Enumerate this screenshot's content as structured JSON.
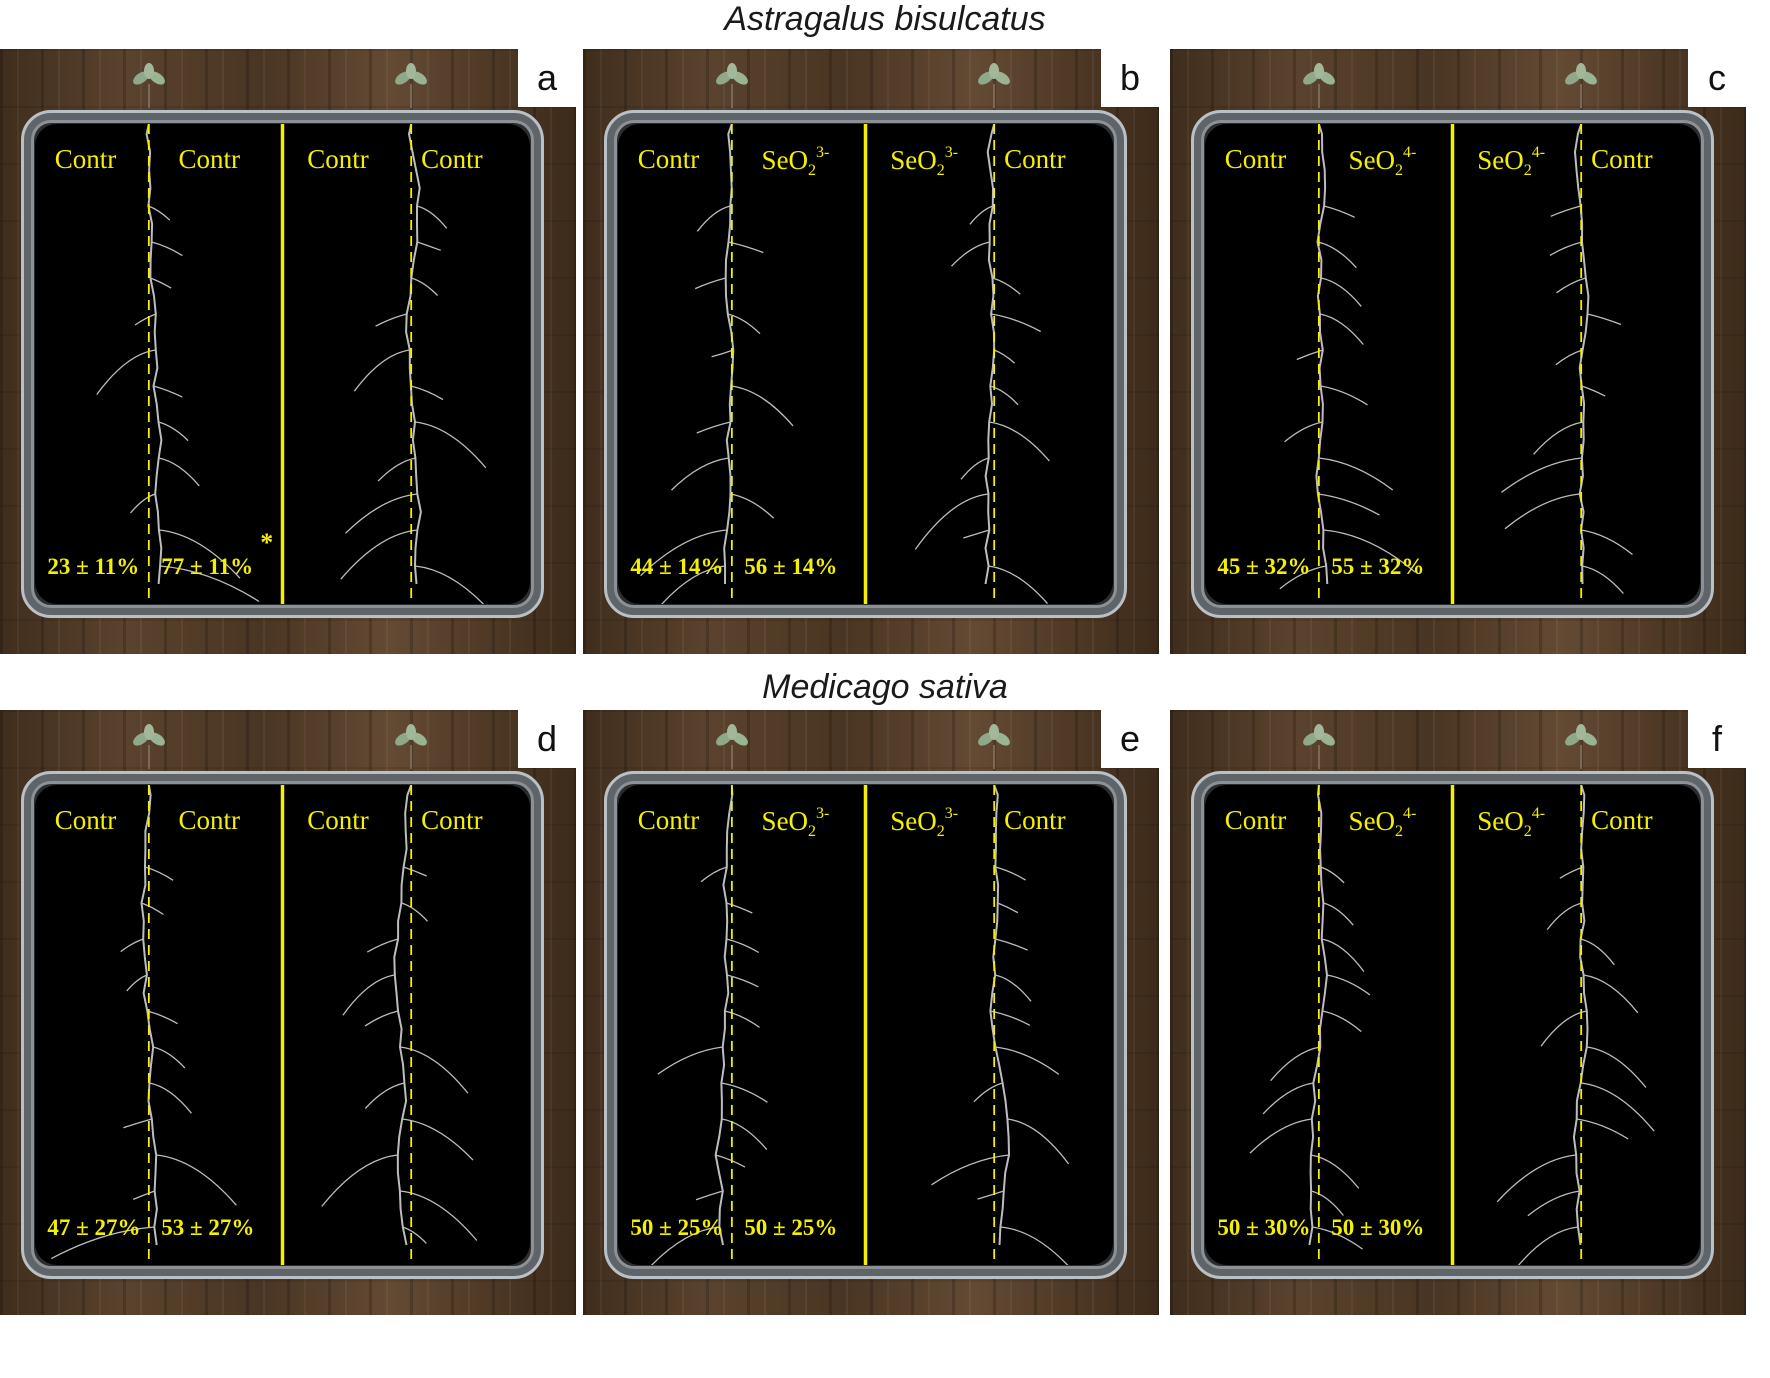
{
  "titles": {
    "top": "Astragalus bisulcatus",
    "bottom": "Medicago sativa"
  },
  "colors": {
    "label": "#f5f000",
    "root": "#bdbdbd"
  },
  "panels": [
    {
      "letter": "a",
      "labels": [
        {
          "main": "Contr",
          "sub": "",
          "sup": ""
        },
        {
          "main": "Contr",
          "sub": "",
          "sup": ""
        },
        {
          "main": "Contr",
          "sub": "",
          "sup": ""
        },
        {
          "main": "Contr",
          "sub": "",
          "sup": ""
        }
      ],
      "percent_left": "23 ± 11%",
      "percent_right": "77 ± 11%",
      "star": "*"
    },
    {
      "letter": "b",
      "labels": [
        {
          "main": "Contr",
          "sub": "",
          "sup": ""
        },
        {
          "main": "SeO",
          "sub": "2",
          "sup": "3-"
        },
        {
          "main": "SeO",
          "sub": "2",
          "sup": "3-"
        },
        {
          "main": "Contr",
          "sub": "",
          "sup": ""
        }
      ],
      "percent_left": "44 ± 14%",
      "percent_right": "56 ± 14%",
      "star": ""
    },
    {
      "letter": "c",
      "labels": [
        {
          "main": "Contr",
          "sub": "",
          "sup": ""
        },
        {
          "main": "SeO",
          "sub": "2",
          "sup": "4-"
        },
        {
          "main": "SeO",
          "sub": "2",
          "sup": "4-"
        },
        {
          "main": "Contr",
          "sub": "",
          "sup": ""
        }
      ],
      "percent_left": "45 ± 32%",
      "percent_right": "55 ± 32%",
      "star": ""
    },
    {
      "letter": "d",
      "labels": [
        {
          "main": "Contr",
          "sub": "",
          "sup": ""
        },
        {
          "main": "Contr",
          "sub": "",
          "sup": ""
        },
        {
          "main": "Contr",
          "sub": "",
          "sup": ""
        },
        {
          "main": "Contr",
          "sub": "",
          "sup": ""
        }
      ],
      "percent_left": "47 ± 27%",
      "percent_right": "53 ± 27%",
      "star": ""
    },
    {
      "letter": "e",
      "labels": [
        {
          "main": "Contr",
          "sub": "",
          "sup": ""
        },
        {
          "main": "SeO",
          "sub": "2",
          "sup": "3-"
        },
        {
          "main": "SeO",
          "sub": "2",
          "sup": "3-"
        },
        {
          "main": "Contr",
          "sub": "",
          "sup": ""
        }
      ],
      "percent_left": "50 ± 25%",
      "percent_right": "50 ± 25%",
      "star": ""
    },
    {
      "letter": "f",
      "labels": [
        {
          "main": "Contr",
          "sub": "",
          "sup": ""
        },
        {
          "main": "SeO",
          "sub": "2",
          "sup": "4-"
        },
        {
          "main": "SeO",
          "sub": "2",
          "sup": "4-"
        },
        {
          "main": "Contr",
          "sub": "",
          "sup": ""
        }
      ],
      "percent_left": "50 ± 30%",
      "percent_right": "50 ± 30%",
      "star": ""
    }
  ]
}
